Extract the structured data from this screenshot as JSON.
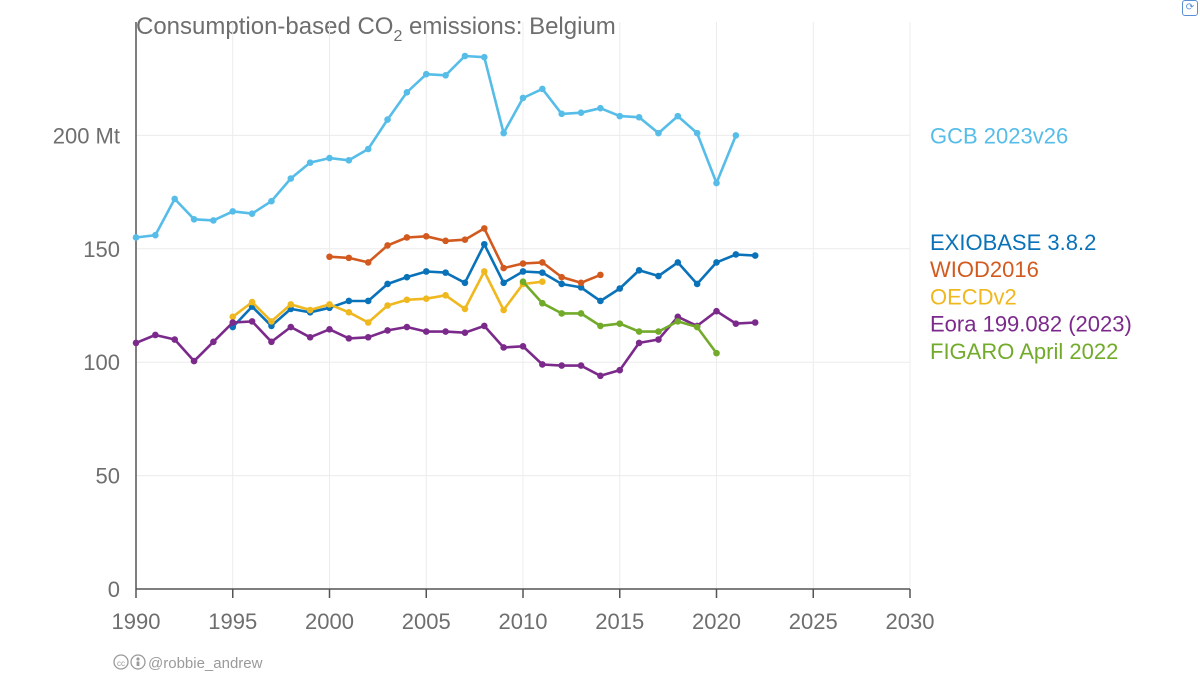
{
  "chart_data": {
    "type": "line",
    "title_main": "Consumption-based CO",
    "title_sub": "2",
    "title_rest": " emissions: Belgium",
    "title": "Consumption-based CO2 emissions: Belgium",
    "xlim": [
      1990,
      2030
    ],
    "ylim": [
      0,
      250
    ],
    "x_ticks": [
      1990,
      1995,
      2000,
      2005,
      2010,
      2015,
      2020,
      2025,
      2030
    ],
    "y_ticks": [
      {
        "value": 0,
        "label": "0"
      },
      {
        "value": 50,
        "label": "50"
      },
      {
        "value": 100,
        "label": "100"
      },
      {
        "value": 150,
        "label": "150"
      },
      {
        "value": 200,
        "label": "200 Mt"
      }
    ],
    "series": [
      {
        "name": "GCB 2023v26",
        "color": "#56bde8",
        "legend_value": 200,
        "x": [
          1990,
          1991,
          1992,
          1993,
          1994,
          1995,
          1996,
          1997,
          1998,
          1999,
          2000,
          2001,
          2002,
          2003,
          2004,
          2005,
          2006,
          2007,
          2008,
          2009,
          2010,
          2011,
          2012,
          2013,
          2014,
          2015,
          2016,
          2017,
          2018,
          2019,
          2020,
          2021
        ],
        "values": [
          155,
          156,
          172,
          163,
          162.5,
          166.5,
          165.5,
          171,
          181,
          188,
          190,
          189,
          194,
          207,
          219,
          227,
          226.5,
          235,
          234.5,
          201,
          216.5,
          220.5,
          209.5,
          210,
          212,
          208.5,
          208,
          201,
          208.5,
          201,
          179,
          200
        ]
      },
      {
        "name": "EXIOBASE 3.8.2",
        "color": "#0a72b9",
        "legend_value": 153,
        "x": [
          1995,
          1996,
          1997,
          1998,
          1999,
          2000,
          2001,
          2002,
          2003,
          2004,
          2005,
          2006,
          2007,
          2008,
          2009,
          2010,
          2011,
          2012,
          2013,
          2014,
          2015,
          2016,
          2017,
          2018,
          2019,
          2020,
          2021,
          2022
        ],
        "values": [
          115.5,
          124.5,
          116,
          123.5,
          122,
          124,
          127,
          127,
          134.5,
          137.5,
          140,
          139.5,
          135,
          152,
          135,
          140,
          139.5,
          134.5,
          133,
          127,
          132.5,
          140.5,
          138,
          144,
          134.5,
          144,
          147.5,
          147
        ]
      },
      {
        "name": "WIOD2016",
        "color": "#d25a1f",
        "legend_value": 141,
        "x": [
          2000,
          2001,
          2002,
          2003,
          2004,
          2005,
          2006,
          2007,
          2008,
          2009,
          2010,
          2011,
          2012,
          2013,
          2014
        ],
        "values": [
          146.5,
          146,
          144,
          151.5,
          155,
          155.5,
          153.5,
          154,
          159,
          141.5,
          143.5,
          144,
          137.5,
          135,
          138.5
        ]
      },
      {
        "name": "OECDv2",
        "color": "#f0b81f",
        "legend_value": 129,
        "x": [
          1995,
          1996,
          1997,
          1998,
          1999,
          2000,
          2001,
          2002,
          2003,
          2004,
          2005,
          2006,
          2007,
          2008,
          2009,
          2010,
          2011
        ],
        "values": [
          120,
          126.5,
          118,
          125.5,
          123,
          125.5,
          122,
          117.5,
          125,
          127.5,
          128,
          129.5,
          123.5,
          140,
          123,
          134.5,
          135.5
        ]
      },
      {
        "name": "Eora 199.082 (2023)",
        "color": "#7b2a8b",
        "legend_value": 117,
        "x": [
          1990,
          1991,
          1992,
          1993,
          1994,
          1995,
          1996,
          1997,
          1998,
          1999,
          2000,
          2001,
          2002,
          2003,
          2004,
          2005,
          2006,
          2007,
          2008,
          2009,
          2010,
          2011,
          2012,
          2013,
          2014,
          2015,
          2016,
          2017,
          2018,
          2019,
          2020,
          2021,
          2022
        ],
        "values": [
          108.5,
          112,
          110,
          100.5,
          109,
          117.5,
          118,
          109,
          115.5,
          111,
          114.5,
          110.5,
          111,
          114,
          115.5,
          113.5,
          113.5,
          113,
          116,
          106.5,
          107,
          99,
          98.5,
          98.5,
          94,
          96.5,
          108.5,
          110,
          120,
          116,
          122.5,
          117,
          117.5
        ]
      },
      {
        "name": "FIGARO April 2022",
        "color": "#72ab2a",
        "legend_value": 105,
        "x": [
          2010,
          2011,
          2012,
          2013,
          2014,
          2015,
          2016,
          2017,
          2018,
          2019,
          2020
        ],
        "values": [
          135.5,
          126,
          121.5,
          121.5,
          116,
          117,
          113.5,
          113.5,
          118,
          115.5,
          104
        ]
      }
    ]
  },
  "credit": "@robbie_andrew",
  "corner_icon": "refresh-icon"
}
